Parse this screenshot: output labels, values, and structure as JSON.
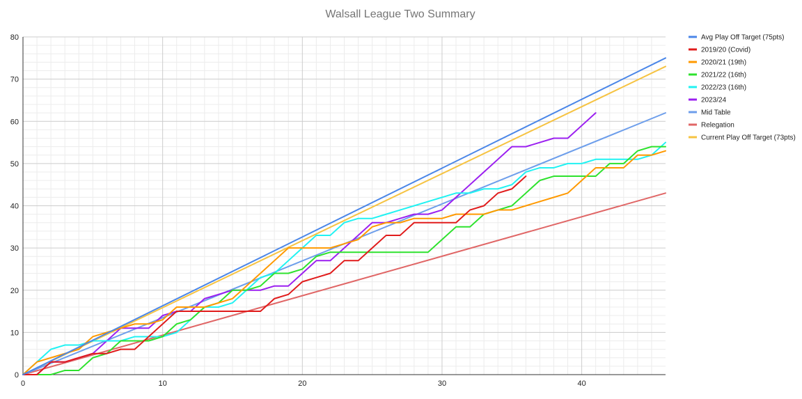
{
  "chart_data": {
    "type": "line",
    "title": "Walsall League Two Summary",
    "xlabel": "",
    "ylabel": "",
    "xlim": [
      0,
      46
    ],
    "ylim": [
      0,
      80
    ],
    "x_ticks": [
      0,
      10,
      20,
      30,
      40
    ],
    "y_ticks": [
      0,
      10,
      20,
      30,
      40,
      50,
      60,
      70,
      80
    ],
    "grid": true,
    "legend_position": "right",
    "series": [
      {
        "name": "Avg Play Off Target (75pts)",
        "color": "#4a86e8",
        "x": [
          0,
          46
        ],
        "y": [
          0,
          75
        ]
      },
      {
        "name": "2019/20 (Covid)",
        "color": "#e01b1b",
        "x": [
          0,
          1,
          2,
          3,
          4,
          5,
          6,
          7,
          8,
          9,
          10,
          11,
          12,
          13,
          14,
          15,
          16,
          17,
          18,
          19,
          20,
          21,
          22,
          23,
          24,
          25,
          26,
          27,
          28,
          29,
          30,
          31,
          32,
          33,
          34,
          35,
          36
        ],
        "y": [
          0,
          0,
          3,
          3,
          4,
          5,
          5,
          6,
          6,
          9,
          12,
          15,
          15,
          15,
          15,
          15,
          15,
          15,
          18,
          19,
          22,
          23,
          24,
          27,
          27,
          30,
          33,
          33,
          36,
          36,
          36,
          36,
          39,
          40,
          43,
          44,
          47
        ]
      },
      {
        "name": "2020/21 (19th)",
        "color": "#ff9900",
        "x": [
          0,
          1,
          2,
          3,
          4,
          5,
          6,
          7,
          8,
          9,
          10,
          11,
          12,
          13,
          14,
          15,
          16,
          17,
          18,
          19,
          20,
          21,
          22,
          23,
          24,
          25,
          26,
          27,
          28,
          29,
          30,
          31,
          32,
          33,
          34,
          35,
          36,
          37,
          38,
          39,
          40,
          41,
          42,
          43,
          44,
          45,
          46
        ],
        "y": [
          0,
          3,
          4,
          5,
          6,
          9,
          10,
          11,
          12,
          12,
          13,
          16,
          16,
          16,
          17,
          18,
          21,
          24,
          27,
          30,
          30,
          30,
          30,
          31,
          32,
          35,
          36,
          36,
          37,
          37,
          37,
          38,
          38,
          38,
          39,
          39,
          40,
          41,
          42,
          43,
          46,
          49,
          49,
          49,
          52,
          52,
          53
        ]
      },
      {
        "name": "2021/22 (16th)",
        "color": "#2de22d",
        "x": [
          0,
          1,
          2,
          3,
          4,
          5,
          6,
          7,
          8,
          9,
          10,
          11,
          12,
          13,
          14,
          15,
          16,
          17,
          18,
          19,
          20,
          21,
          22,
          23,
          24,
          25,
          26,
          27,
          28,
          29,
          30,
          31,
          32,
          33,
          34,
          35,
          36,
          37,
          38,
          39,
          40,
          41,
          42,
          43,
          44,
          45,
          46
        ],
        "y": [
          0,
          0,
          0,
          1,
          1,
          4,
          5,
          8,
          8,
          8,
          9,
          12,
          13,
          16,
          17,
          20,
          20,
          21,
          24,
          24,
          25,
          28,
          29,
          29,
          29,
          29,
          29,
          29,
          29,
          29,
          32,
          35,
          35,
          38,
          39,
          40,
          43,
          46,
          47,
          47,
          47,
          47,
          50,
          50,
          53,
          54,
          54
        ]
      },
      {
        "name": "2022/23 (16th)",
        "color": "#20f2f2",
        "x": [
          0,
          1,
          2,
          3,
          4,
          5,
          6,
          7,
          8,
          9,
          10,
          11,
          12,
          13,
          14,
          15,
          16,
          17,
          18,
          19,
          20,
          21,
          22,
          23,
          24,
          25,
          26,
          27,
          28,
          29,
          30,
          31,
          32,
          33,
          34,
          35,
          36,
          37,
          38,
          39,
          40,
          41,
          42,
          43,
          44,
          45,
          46
        ],
        "y": [
          0,
          3,
          6,
          7,
          7,
          8,
          8,
          8,
          9,
          9,
          9,
          10,
          13,
          16,
          16,
          17,
          20,
          23,
          24,
          27,
          30,
          33,
          33,
          36,
          37,
          37,
          38,
          39,
          40,
          41,
          42,
          43,
          43,
          44,
          44,
          45,
          48,
          49,
          49,
          50,
          50,
          51,
          51,
          51,
          51,
          52,
          55
        ]
      },
      {
        "name": "2023/24",
        "color": "#9b1ff0",
        "x": [
          0,
          1,
          2,
          3,
          4,
          5,
          6,
          7,
          8,
          9,
          10,
          11,
          12,
          13,
          14,
          15,
          16,
          17,
          18,
          19,
          20,
          21,
          22,
          23,
          24,
          25,
          26,
          27,
          28,
          29,
          30,
          31,
          32,
          33,
          34,
          35,
          36,
          37,
          38,
          39,
          40,
          41
        ],
        "y": [
          0,
          0,
          3,
          3,
          4,
          5,
          8,
          11,
          11,
          11,
          14,
          15,
          15,
          18,
          19,
          20,
          20,
          20,
          21,
          21,
          24,
          27,
          27,
          30,
          33,
          36,
          36,
          37,
          38,
          38,
          39,
          42,
          45,
          48,
          51,
          54,
          54,
          55,
          56,
          56,
          59,
          62
        ]
      },
      {
        "name": "Mid Table",
        "color": "#6d9eeb",
        "x": [
          0,
          46
        ],
        "y": [
          0,
          62
        ]
      },
      {
        "name": "Relegation",
        "color": "#e06666",
        "x": [
          0,
          46
        ],
        "y": [
          0,
          43
        ]
      },
      {
        "name": "Current Play Off Target (73pts)",
        "color": "#f6c342",
        "x": [
          0,
          46
        ],
        "y": [
          0,
          73
        ]
      }
    ]
  }
}
